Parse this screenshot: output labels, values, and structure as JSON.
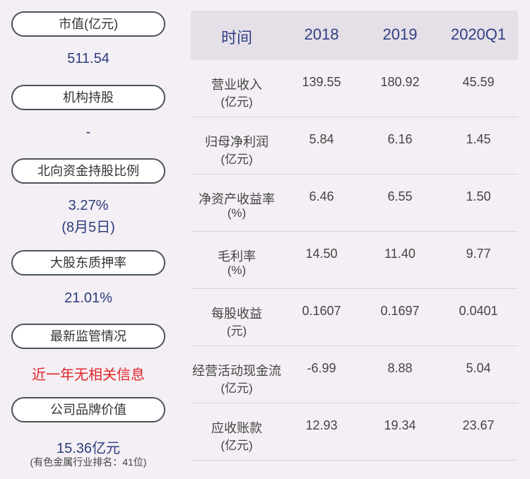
{
  "left_panel": {
    "items": [
      {
        "label": "市值(亿元)",
        "value": "511.54"
      },
      {
        "label": "机构持股",
        "value": "-"
      },
      {
        "label": "北向资金持股比例",
        "value": "3.27%",
        "detail": "(8月5日)"
      },
      {
        "label": "大股东质押率",
        "value": "21.01%"
      },
      {
        "label": "最新监管情况",
        "value": "近一年无相关信息",
        "alert": true
      },
      {
        "label": "公司品牌价值",
        "value": "15.36亿元",
        "note": "(有色金属行业排名：41位)"
      }
    ]
  },
  "table": {
    "header": [
      "时间",
      "2018",
      "2019",
      "2020Q1"
    ],
    "rows": [
      {
        "label": [
          "营业收入",
          "(亿元)"
        ],
        "values": [
          "139.55",
          "180.92",
          "45.59"
        ]
      },
      {
        "label": [
          "归母净利润",
          "(亿元)"
        ],
        "values": [
          "5.84",
          "6.16",
          "1.45"
        ]
      },
      {
        "label": [
          "净资产收益率",
          "(%)"
        ],
        "values": [
          "6.46",
          "6.55",
          "1.50"
        ]
      },
      {
        "label": [
          "毛利率",
          "(%)"
        ],
        "values": [
          "14.50",
          "11.40",
          "9.77"
        ]
      },
      {
        "label": [
          "每股收益",
          "(元)"
        ],
        "values": [
          "0.1607",
          "0.1697",
          "0.0401"
        ]
      },
      {
        "label": [
          "经营活动现金流",
          "(亿元)"
        ],
        "values": [
          "-6.99",
          "8.88",
          "5.04"
        ]
      },
      {
        "label": [
          "应收账款",
          "(亿元)"
        ],
        "values": [
          "12.93",
          "19.34",
          "23.67"
        ]
      }
    ]
  }
}
